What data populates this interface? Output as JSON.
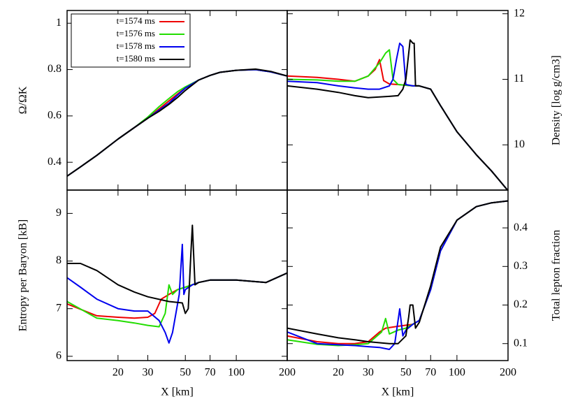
{
  "chart_data": [
    {
      "type": "line",
      "ylabel": "Ω/ΩK",
      "xscale": "log",
      "xlim": [
        10,
        200
      ],
      "xticks": [
        20,
        30,
        50,
        70,
        100,
        200
      ],
      "ylim": [
        0.28,
        1.055
      ],
      "yticks": [
        0.4,
        0.6,
        0.8,
        1
      ],
      "y_axis_side": "left",
      "legend": "upper left",
      "series": [
        {
          "name": "t=1574 ms",
          "color": "#ee0000",
          "x": [
            10,
            12,
            15,
            20,
            25,
            30,
            35,
            40,
            45,
            50,
            60,
            70,
            80,
            100,
            130,
            160,
            200
          ],
          "values": [
            0.34,
            0.38,
            0.43,
            0.5,
            0.55,
            0.59,
            0.63,
            0.665,
            0.695,
            0.72,
            0.755,
            0.775,
            0.788,
            0.797,
            0.8,
            0.79,
            0.772
          ]
        },
        {
          "name": "t=1576 ms",
          "color": "#22dd00",
          "x": [
            10,
            12,
            15,
            20,
            25,
            30,
            35,
            40,
            45,
            50,
            60,
            70,
            80,
            100,
            130,
            160,
            200
          ],
          "values": [
            0.34,
            0.38,
            0.43,
            0.5,
            0.55,
            0.595,
            0.64,
            0.675,
            0.705,
            0.725,
            0.755,
            0.775,
            0.788,
            0.797,
            0.8,
            0.79,
            0.772
          ]
        },
        {
          "name": "t=1578 ms",
          "color": "#0000ee",
          "x": [
            10,
            12,
            15,
            20,
            25,
            30,
            35,
            40,
            45,
            50,
            60,
            70,
            80,
            100,
            130,
            160,
            200
          ],
          "values": [
            0.34,
            0.38,
            0.43,
            0.5,
            0.55,
            0.59,
            0.625,
            0.655,
            0.69,
            0.72,
            0.755,
            0.775,
            0.788,
            0.797,
            0.8,
            0.79,
            0.772
          ]
        },
        {
          "name": "t=1580 ms",
          "color": "#000000",
          "x": [
            10,
            12,
            15,
            20,
            25,
            30,
            35,
            40,
            45,
            50,
            60,
            70,
            80,
            100,
            130,
            160,
            200
          ],
          "values": [
            0.34,
            0.38,
            0.43,
            0.5,
            0.55,
            0.59,
            0.62,
            0.65,
            0.68,
            0.71,
            0.755,
            0.775,
            0.788,
            0.797,
            0.802,
            0.792,
            0.772
          ]
        }
      ]
    },
    {
      "type": "line",
      "ylabel": "Density [log g/cm3]",
      "xscale": "log",
      "xlim": [
        10,
        200
      ],
      "xticks": [
        20,
        30,
        50,
        70,
        100,
        200
      ],
      "ylim": [
        9.31,
        12.05
      ],
      "yticks": [
        10,
        11,
        12
      ],
      "y_axis_side": "right",
      "series": [
        {
          "name": "t=1574 ms",
          "color": "#ee0000",
          "x": [
            10,
            15,
            20,
            25,
            30,
            33,
            35,
            37,
            40,
            45,
            55,
            60,
            70,
            80,
            100,
            130,
            160,
            200
          ],
          "values": [
            11.05,
            11.03,
            11.0,
            10.97,
            11.05,
            11.15,
            11.3,
            10.98,
            10.93,
            10.92,
            10.9,
            10.9,
            10.85,
            10.6,
            10.2,
            9.85,
            9.6,
            9.3
          ]
        },
        {
          "name": "t=1576 ms",
          "color": "#22dd00",
          "x": [
            10,
            15,
            20,
            25,
            30,
            35,
            38,
            40,
            42,
            45,
            55,
            60,
            70,
            80,
            100,
            130,
            160,
            200
          ],
          "values": [
            11.0,
            10.99,
            10.97,
            10.97,
            11.05,
            11.25,
            11.4,
            11.45,
            11.0,
            10.92,
            10.9,
            10.9,
            10.85,
            10.6,
            10.2,
            9.85,
            9.6,
            9.3
          ]
        },
        {
          "name": "t=1578 ms",
          "color": "#0000ee",
          "x": [
            10,
            15,
            20,
            25,
            30,
            35,
            40,
            42,
            44,
            46,
            48,
            50,
            55,
            60,
            70,
            80,
            100,
            130,
            160,
            200
          ],
          "values": [
            10.97,
            10.95,
            10.9,
            10.87,
            10.85,
            10.85,
            10.9,
            11.0,
            11.3,
            11.55,
            11.5,
            10.92,
            10.9,
            10.9,
            10.85,
            10.6,
            10.2,
            9.85,
            9.6,
            9.3
          ]
        },
        {
          "name": "t=1580 ms",
          "color": "#000000",
          "x": [
            10,
            15,
            20,
            25,
            30,
            35,
            40,
            45,
            48,
            50,
            52,
            53,
            55,
            56,
            57,
            60,
            70,
            80,
            100,
            130,
            160,
            200
          ],
          "values": [
            10.9,
            10.85,
            10.8,
            10.75,
            10.72,
            10.73,
            10.74,
            10.75,
            10.85,
            11.0,
            11.4,
            11.6,
            11.55,
            11.55,
            10.9,
            10.9,
            10.85,
            10.6,
            10.2,
            9.85,
            9.6,
            9.3
          ]
        }
      ]
    },
    {
      "type": "line",
      "ylabel": "Entropy per Baryon [kB]",
      "xlabel": "X [km]",
      "xscale": "log",
      "xlim": [
        10,
        200
      ],
      "xticks": [
        20,
        30,
        50,
        70,
        100,
        200
      ],
      "ylim": [
        5.91,
        9.49
      ],
      "yticks": [
        6,
        7,
        8,
        9
      ],
      "y_axis_side": "left",
      "series": [
        {
          "name": "t=1574 ms",
          "color": "#ee0000",
          "x": [
            10,
            15,
            20,
            25,
            30,
            33,
            36,
            40,
            45,
            50,
            60,
            70,
            100,
            150,
            200
          ],
          "values": [
            7.1,
            6.85,
            6.82,
            6.8,
            6.82,
            6.9,
            7.2,
            7.3,
            7.4,
            7.45,
            7.55,
            7.6,
            7.6,
            7.55,
            7.75
          ]
        },
        {
          "name": "t=1576 ms",
          "color": "#22dd00",
          "x": [
            10,
            15,
            20,
            25,
            30,
            35,
            38,
            40,
            42,
            45,
            50,
            60,
            70,
            100,
            150,
            200
          ],
          "values": [
            7.15,
            6.8,
            6.75,
            6.7,
            6.65,
            6.62,
            6.9,
            7.5,
            7.3,
            7.4,
            7.45,
            7.55,
            7.6,
            7.6,
            7.55,
            7.75
          ]
        },
        {
          "name": "t=1578 ms",
          "color": "#0000ee",
          "x": [
            10,
            12,
            15,
            20,
            25,
            30,
            35,
            38,
            40,
            42,
            46,
            48,
            49,
            50,
            55,
            60,
            70,
            100,
            150,
            200
          ],
          "values": [
            7.65,
            7.45,
            7.2,
            7.0,
            6.95,
            6.95,
            6.75,
            6.5,
            6.28,
            6.5,
            7.3,
            8.35,
            7.3,
            7.4,
            7.5,
            7.55,
            7.6,
            7.6,
            7.55,
            7.75
          ]
        },
        {
          "name": "t=1580 ms",
          "color": "#000000",
          "x": [
            10,
            12,
            15,
            20,
            25,
            30,
            40,
            48,
            50,
            52,
            54,
            55,
            57,
            60,
            70,
            100,
            150,
            200
          ],
          "values": [
            7.95,
            7.95,
            7.8,
            7.5,
            7.35,
            7.25,
            7.15,
            7.12,
            6.9,
            7.0,
            8.2,
            8.75,
            7.5,
            7.55,
            7.6,
            7.6,
            7.55,
            7.75
          ]
        }
      ]
    },
    {
      "type": "line",
      "ylabel": "Total lepton fraction",
      "xlabel": "X [km]",
      "xscale": "log",
      "xlim": [
        10,
        200
      ],
      "xticks": [
        20,
        30,
        50,
        70,
        100,
        200
      ],
      "ylim": [
        0.056,
        0.498
      ],
      "yticks": [
        0.1,
        0.2,
        0.3,
        0.4
      ],
      "y_axis_side": "right",
      "series": [
        {
          "name": "t=1574 ms",
          "color": "#ee0000",
          "x": [
            10,
            15,
            20,
            25,
            30,
            35,
            38,
            45,
            55,
            60,
            70,
            80,
            100,
            130,
            160,
            200
          ],
          "values": [
            0.12,
            0.105,
            0.1,
            0.1,
            0.105,
            0.13,
            0.14,
            0.145,
            0.15,
            0.16,
            0.24,
            0.34,
            0.42,
            0.455,
            0.465,
            0.47
          ]
        },
        {
          "name": "t=1576 ms",
          "color": "#22dd00",
          "x": [
            10,
            15,
            20,
            25,
            30,
            36,
            38,
            40,
            45,
            50,
            60,
            70,
            80,
            100,
            130,
            160,
            200
          ],
          "values": [
            0.11,
            0.098,
            0.095,
            0.097,
            0.1,
            0.13,
            0.165,
            0.125,
            0.135,
            0.14,
            0.16,
            0.24,
            0.34,
            0.42,
            0.455,
            0.465,
            0.47
          ]
        },
        {
          "name": "t=1578 ms",
          "color": "#0000ee",
          "x": [
            10,
            15,
            20,
            25,
            30,
            35,
            40,
            43,
            46,
            48,
            50,
            55,
            60,
            70,
            80,
            100,
            130,
            160,
            200
          ],
          "values": [
            0.13,
            0.1,
            0.097,
            0.095,
            0.092,
            0.09,
            0.085,
            0.1,
            0.19,
            0.12,
            0.135,
            0.15,
            0.16,
            0.24,
            0.34,
            0.42,
            0.455,
            0.465,
            0.47
          ]
        },
        {
          "name": "t=1580 ms",
          "color": "#000000",
          "x": [
            10,
            15,
            20,
            25,
            30,
            40,
            45,
            50,
            52,
            53,
            55,
            57,
            60,
            70,
            80,
            100,
            130,
            160,
            200
          ],
          "values": [
            0.14,
            0.125,
            0.115,
            0.11,
            0.105,
            0.1,
            0.1,
            0.12,
            0.17,
            0.2,
            0.2,
            0.14,
            0.155,
            0.25,
            0.35,
            0.42,
            0.455,
            0.465,
            0.47
          ]
        }
      ]
    }
  ]
}
